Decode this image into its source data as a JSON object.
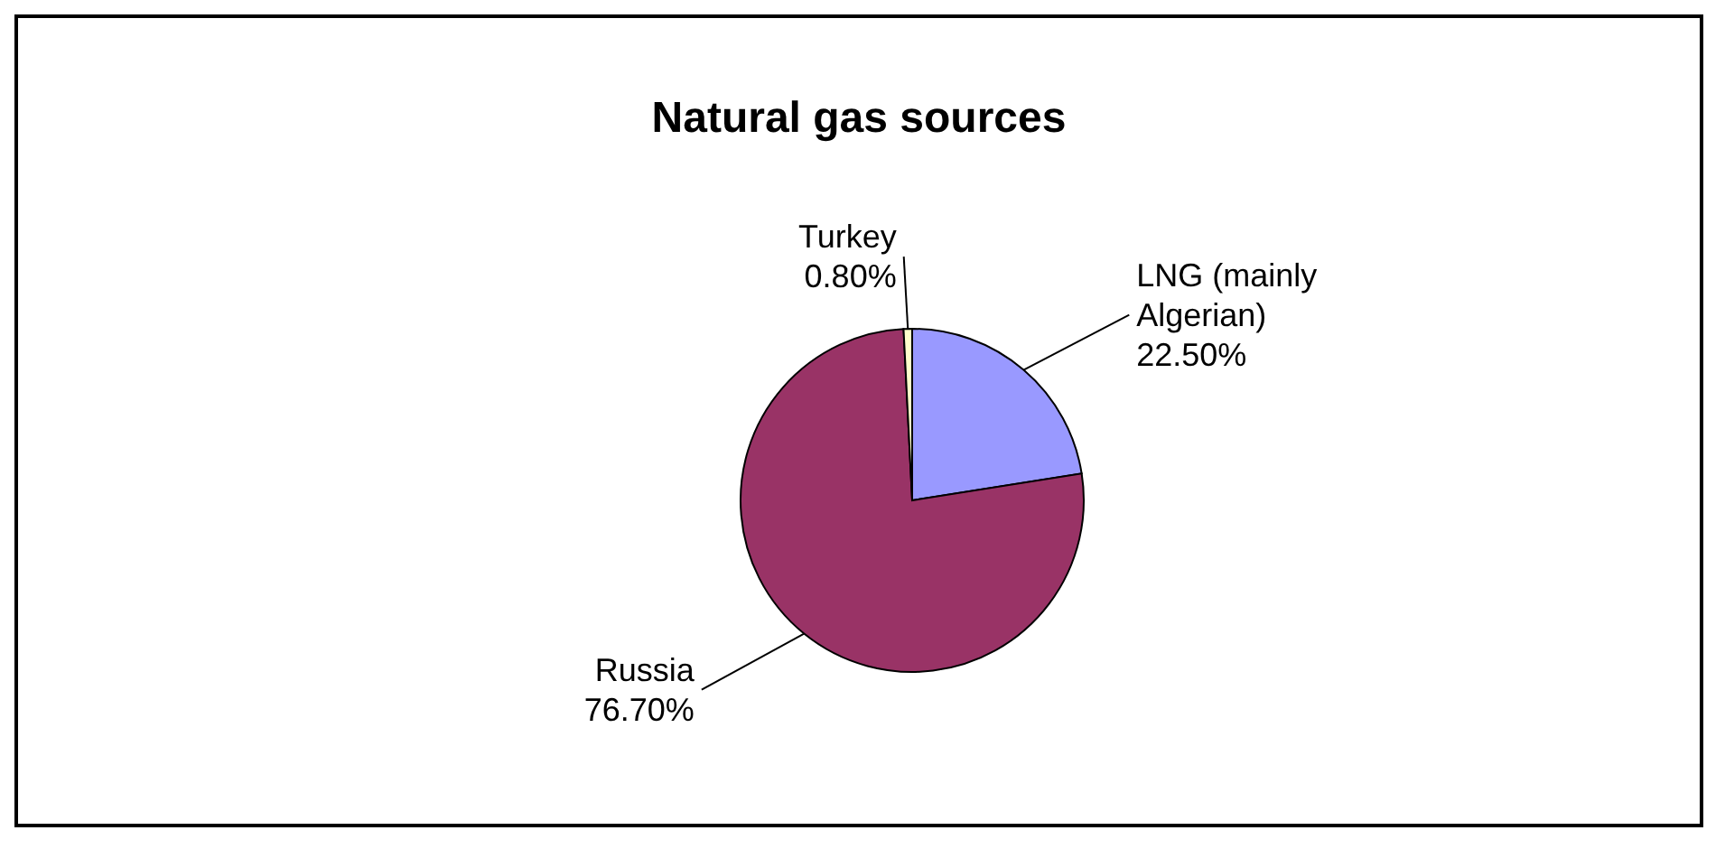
{
  "chart_data": {
    "type": "pie",
    "title": "Natural gas sources",
    "categories": [
      "LNG (mainly Algerian)",
      "Russia",
      "Turkey"
    ],
    "values": [
      22.5,
      76.7,
      0.8
    ],
    "value_labels": [
      "22.50%",
      "76.70%",
      "0.80%"
    ],
    "colors": [
      "#9999ff",
      "#993366",
      "#ffffcc"
    ],
    "legend": false
  }
}
